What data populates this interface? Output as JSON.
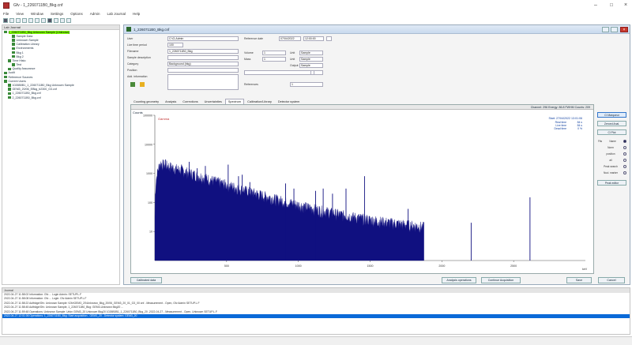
{
  "window": {
    "title": "Gfv - 1_2260711B0_Bkg.cnf",
    "controls": [
      "–",
      "☐",
      "×"
    ]
  },
  "menu": [
    "File",
    "View",
    "Window",
    "Settings",
    "Options",
    "Admin",
    "Lab Journal",
    "Help"
  ],
  "tree": {
    "header": "Lab Journal",
    "items": [
      {
        "label": "1_2260711B0_Bkg Unknown Sample (Unknown)",
        "indent": 0,
        "selected": true
      },
      {
        "label": "Sample Data",
        "indent": 2,
        "selected": false
      },
      {
        "label": "Unknown Sample",
        "indent": 2,
        "selected": false
      },
      {
        "label": "Calibration Library",
        "indent": 2,
        "selected": false
      },
      {
        "label": "Environments",
        "indent": 2,
        "selected": false
      },
      {
        "label": "Bkg 1",
        "indent": 2,
        "selected": false
      },
      {
        "label": "Bkg 2",
        "indent": 2,
        "selected": false
      },
      {
        "label": "Time Histo",
        "indent": 1,
        "selected": false
      },
      {
        "label": "Test",
        "indent": 2,
        "selected": false
      },
      {
        "label": "Quality Assurance",
        "indent": 1,
        "selected": false
      },
      {
        "label": "Audit",
        "indent": 0,
        "selected": false
      },
      {
        "label": "Reference Sources",
        "indent": 0,
        "selected": false
      },
      {
        "label": "Current Users",
        "indent": 0,
        "selected": false
      },
      {
        "label": "1026B0B1_1_2260711B0_Bkg Unknown Sample",
        "indent": 1,
        "selected": false
      },
      {
        "label": "GEM3_20/06_EBkg_b2300_G3.cnf",
        "indent": 1,
        "selected": false
      },
      {
        "label": "1_2260711B0_Bkg.cnf",
        "indent": 1,
        "selected": false
      },
      {
        "label": "2_2260711B0_Bkg.cnf",
        "indent": 1,
        "selected": false
      }
    ]
  },
  "document": {
    "title": "1_2260711B0_Bkg.cnf",
    "fields": {
      "user_label": "User",
      "user_value": "C:\\G-Admin",
      "live_period_label": "Live time period",
      "live_period_value": "100",
      "filename_label": "Filename",
      "filename_value": "1_2260711B0_Bkg",
      "sample_desc_label": "Sample description",
      "sample_desc_value": "",
      "category_label": "Category",
      "category_value": "Background (bkg)",
      "position_label": "Position",
      "position_value": "",
      "add_info_label": "Add. information",
      "add_info_value": "",
      "ref_date_label": "Reference date",
      "ref_date_value": "07/04/2022",
      "ref_time_value": "12:00:00",
      "volume_label": "Volume",
      "volume_value": "1",
      "volume_unit_label": "Unit",
      "volume_unit_value": "Sample",
      "mass_label": "Mass",
      "mass_value": "1",
      "mass_unit_label": "Unit",
      "mass_unit_value": "Sample",
      "output_label": "Output",
      "output_value": "Sample",
      "geometry_value": "",
      "ref_label": "References",
      "ref_value": "1"
    },
    "tabs": [
      "Counting geometry",
      "Analysis",
      "Corrections",
      "Uncertainties",
      "Spectrum",
      "Calibration/Library",
      "Detector system"
    ],
    "active_tab": "Spectrum",
    "status_line": "Channel: 296   Energy: 86.8 FWHM   Counts: 209",
    "side_buttons": [
      "Cl Marqueur",
      "Zeroed Anal.",
      "Cl Plot",
      "Peak editor"
    ],
    "side_options": [
      {
        "label": "Fits",
        "value": "Name",
        "on": true
      },
      {
        "label": "",
        "value": "Norm",
        "on": false
      },
      {
        "label": "",
        "value": "position",
        "on": false
      },
      {
        "label": "",
        "value": "all",
        "on": false
      },
      {
        "label": "",
        "value": "Peak search",
        "on": false
      },
      {
        "label": "",
        "value": "Nucl. marker",
        "on": false
      }
    ],
    "bottom_buttons": {
      "calibrate": "Calibrated data",
      "analysis": "Analysis operations",
      "continue": "Continue Acquisition",
      "save": "Save",
      "cancel": "Cancel"
    }
  },
  "chart_data": {
    "type": "line",
    "title": "Spectrum",
    "legend": "Gamma",
    "info": {
      "start": "Start: 27/04/2022 13:01:06",
      "realtime_label": "Real time",
      "realtime_value": "84 s",
      "livetime_label": "Live time",
      "livetime_value": "84 s",
      "deadtime_label": "Dead time",
      "deadtime_value": "0 %"
    },
    "ylabel": "Counts",
    "xlabel": "keV",
    "y_scale": "log",
    "ylim": [
      1,
      100000
    ],
    "xlim": [
      0,
      3000
    ],
    "x_ticks": [
      500,
      1000,
      1500,
      2000,
      2500
    ],
    "y_ticks": [
      10,
      100,
      1000,
      10000,
      100000
    ],
    "peaks_keV": [
      75,
      186,
      239,
      295,
      352,
      511,
      583,
      609,
      662,
      911,
      969,
      1120,
      1173,
      1238,
      1332,
      1461,
      1765,
      2204,
      2614
    ],
    "peaks_counts": [
      3000,
      2000,
      2500,
      1500,
      1800,
      2000,
      800,
      900,
      500,
      450,
      300,
      250,
      300,
      200,
      300,
      800,
      60,
      20,
      150
    ],
    "continuum_endpoint_keV": 1875
  },
  "log": {
    "header": "Journal",
    "lines": [
      "2022-04-27 11:58:02 Information: Gfv  ...  Login Admin: SETUP.L.F",
      "2022-04-27 11:58:08 Information: Gfv  ...  Login: Gfv Admin SETUP.L.F",
      "2022-04-27 11:58:22 Aufträge/Gfv: Unknown Sample: \\Gfv\\GEM3_20\\Unknown_Bkg_20/06_GEM3_20_01_G3_00 cnf - Measurement - Open, Gfv Admin SETUP.L.F",
      "2022-04-27 11:58:45 Aufträge/Gfv: Unknown Sample, 1_2260711B0_Bkg: GEM3-Unknown Bkg20 ...",
      "2022-04-27 11:59:48 Operations: Unknown Sample: Unkn GEM3_20 Unknown Bkg20 1026B0B1_1_2260711B0_Bkg_20 -2022-04-27 - Measurement - Open, Unknown SETUP.L.F",
      "2022-04-27 12:01:06 Operations: 1_2260711B0_Bkg: Start acquisition - GEM3_20 - Detector system: GEM3_20"
    ],
    "selected_index": 5
  }
}
